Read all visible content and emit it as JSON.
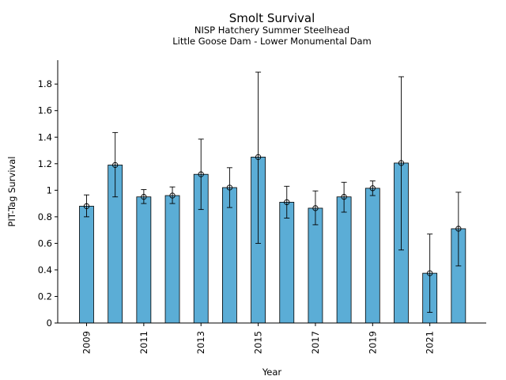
{
  "chart_data": {
    "type": "bar",
    "title": "Smolt Survival",
    "subtitle_line1": "NISP Hatchery Summer Steelhead",
    "subtitle_line2": "Little Goose Dam - Lower Monumental Dam",
    "xlabel": "Year",
    "ylabel": "PIT-Tag Survival",
    "ylim": [
      0,
      1.98
    ],
    "yticks": [
      0,
      0.2,
      0.4,
      0.6,
      0.8,
      1,
      1.2,
      1.4,
      1.6,
      1.8
    ],
    "ytick_labels": [
      "0",
      "0.2",
      "0.4",
      "0.6",
      "0.8",
      "1",
      "1.2",
      "1.4",
      "1.6",
      "1.8"
    ],
    "categories": [
      "2009",
      "2010",
      "2011",
      "2012",
      "2013",
      "2014",
      "2015",
      "2016",
      "2017",
      "2018",
      "2019",
      "2020",
      "2021",
      "2022"
    ],
    "xtick_labels": [
      "2009",
      "2011",
      "2013",
      "2015",
      "2017",
      "2019",
      "2021"
    ],
    "values": [
      0.88,
      1.19,
      0.95,
      0.96,
      1.12,
      1.02,
      1.25,
      0.91,
      0.865,
      0.95,
      1.015,
      1.205,
      0.375,
      0.71
    ],
    "error_low": [
      0.8,
      0.95,
      0.9,
      0.9,
      0.855,
      0.87,
      0.6,
      0.79,
      0.74,
      0.835,
      0.96,
      0.55,
      0.08,
      0.43
    ],
    "error_high": [
      0.965,
      1.435,
      1.005,
      1.025,
      1.385,
      1.17,
      1.89,
      1.03,
      0.995,
      1.06,
      1.07,
      1.855,
      0.67,
      0.985
    ],
    "bar_color": "#5badd6",
    "grid": false,
    "legend": "none"
  }
}
